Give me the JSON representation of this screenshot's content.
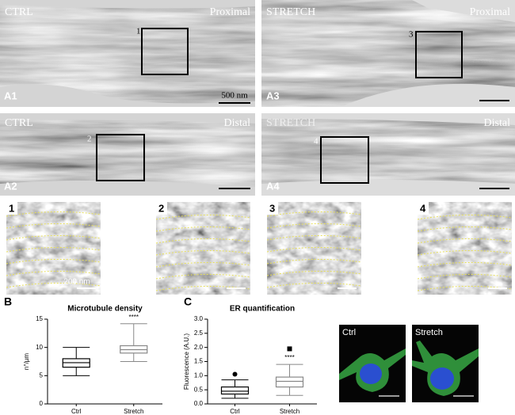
{
  "panels": [
    {
      "label": "A1",
      "condition": "CTRL",
      "region": "Proximal",
      "box": "1",
      "scale": "500 nm"
    },
    {
      "label": "A3",
      "condition": "STRETCH",
      "region": "Proximal",
      "box": "3"
    },
    {
      "label": "A2",
      "condition": "CTRL",
      "region": "Distal",
      "box": "2"
    },
    {
      "label": "A4",
      "condition": "STRETCH",
      "region": "Distal",
      "box": "4"
    }
  ],
  "zooms": [
    {
      "label": "1",
      "scale": "200 nm"
    },
    {
      "label": "2"
    },
    {
      "label": "3"
    },
    {
      "label": "4"
    }
  ],
  "fluorescence": [
    {
      "label": "Ctrl"
    },
    {
      "label": "Stretch"
    }
  ],
  "chart_data": [
    {
      "type": "box",
      "panel_label": "B",
      "title": "Microtubule density",
      "y_label": "n°/µm",
      "ylim": [
        0,
        15
      ],
      "yticks": [
        0,
        5,
        10,
        15
      ],
      "categories": [
        "Ctrl",
        "Stretch"
      ],
      "boxes": [
        {
          "min": 5,
          "q1": 6.5,
          "median": 7.3,
          "q3": 8,
          "max": 10,
          "color": "#000000"
        },
        {
          "min": 7.5,
          "q1": 9,
          "median": 9.6,
          "q3": 10.3,
          "max": 14.2,
          "color": "#888888",
          "annotation": "****"
        }
      ]
    },
    {
      "type": "box",
      "panel_label": "C",
      "title": "ER quantification",
      "y_label": "Fluorescence (A.U.)",
      "ylim": [
        0,
        3
      ],
      "yticks": [
        {
          "value": 0,
          "label": "0.0"
        },
        0.5,
        {
          "value": 1,
          "label": "1.0"
        },
        1.5,
        {
          "value": 2,
          "label": "2.0"
        },
        2.5,
        {
          "value": 3,
          "label": "3.0"
        }
      ],
      "categories": [
        "Ctrl",
        "Stretch"
      ],
      "boxes": [
        {
          "min": 0.2,
          "q1": 0.35,
          "median": 0.45,
          "q3": 0.6,
          "max": 0.85,
          "outliers": [
            1.05
          ],
          "outlier_shape": "circle",
          "color": "#000000"
        },
        {
          "min": 0.3,
          "q1": 0.6,
          "median": 0.8,
          "q3": 0.95,
          "max": 1.4,
          "outliers": [
            1.95
          ],
          "outlier_shape": "square",
          "color": "#888888",
          "annotation": "****"
        }
      ]
    }
  ]
}
